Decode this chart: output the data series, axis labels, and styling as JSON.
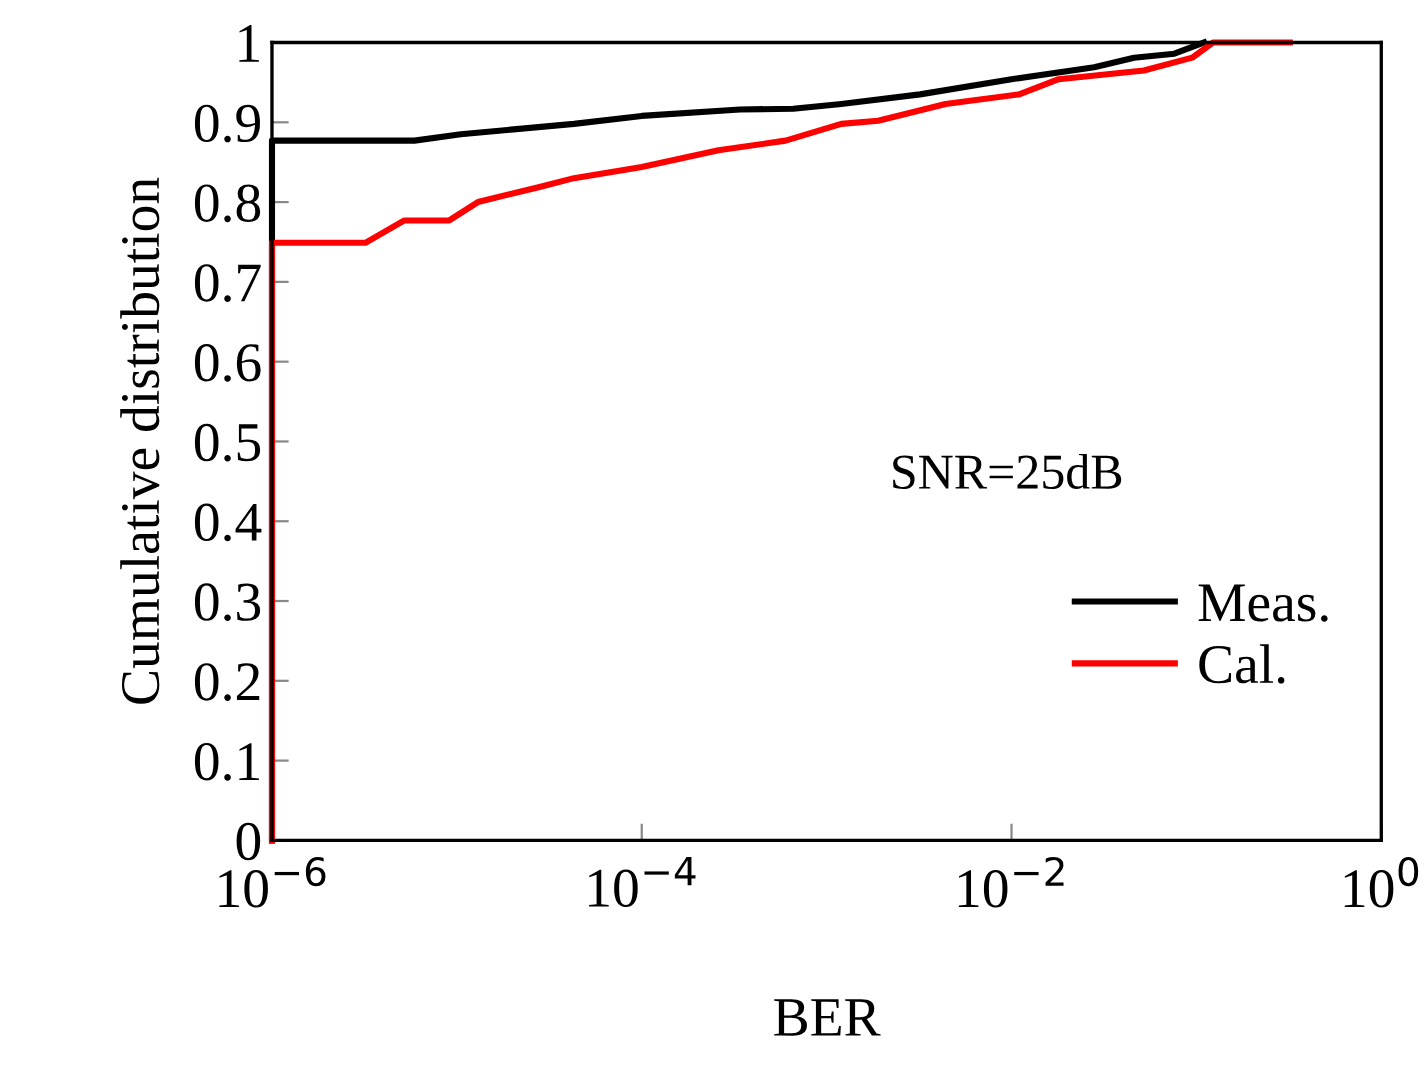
{
  "chart_data": {
    "type": "line",
    "xlabel": "BER",
    "ylabel": "Cumulative distribution",
    "log": "x",
    "xlim": [
      1e-06,
      1
    ],
    "xticks": [
      {
        "value": 1e-06,
        "label": "10$^{−6}$"
      },
      {
        "value": 0.0001,
        "label": "10$^{−4}$"
      },
      {
        "value": 0.01,
        "label": "10$^{−2}$"
      },
      {
        "value": 1,
        "label": "10$^{0}$"
      }
    ],
    "ylim": [
      0,
      1
    ],
    "yticks": [
      0,
      0.1,
      0.2,
      0.3,
      0.4,
      0.5,
      0.6,
      0.7,
      0.8,
      0.9,
      1
    ],
    "grid": false,
    "legend": "right",
    "marker": "none",
    "line_style": "solid",
    "annotations": [
      "SNR=25dB"
    ],
    "series": [
      {
        "name": "Meas.",
        "color": "#000000",
        "x": [
          1e-06,
          1e-06,
          5.9e-06,
          1.05e-05,
          4.3e-05,
          0.0001,
          0.00034,
          0.00066,
          0.0012,
          0.0032,
          0.01,
          0.028,
          0.046,
          0.076,
          0.11
        ],
        "values": [
          0,
          0.877,
          0.877,
          0.885,
          0.898,
          0.908,
          0.916,
          0.917,
          0.923,
          0.935,
          0.954,
          0.969,
          0.981,
          0.986,
          1.0
        ]
      },
      {
        "name": "Cal.",
        "color": "#ff0000",
        "x": [
          1e-06,
          1e-06,
          3.2e-06,
          5.2e-06,
          9.1e-06,
          1.3e-05,
          2.8e-05,
          4.3e-05,
          0.0001,
          0.00026,
          0.0006,
          0.0012,
          0.0019,
          0.0044,
          0.011,
          0.018,
          0.052,
          0.095,
          0.123,
          0.32
        ],
        "values": [
          0,
          0.749,
          0.749,
          0.777,
          0.777,
          0.8,
          0.819,
          0.83,
          0.844,
          0.865,
          0.877,
          0.898,
          0.902,
          0.923,
          0.935,
          0.954,
          0.965,
          0.981,
          1.0,
          1.0
        ]
      }
    ]
  }
}
